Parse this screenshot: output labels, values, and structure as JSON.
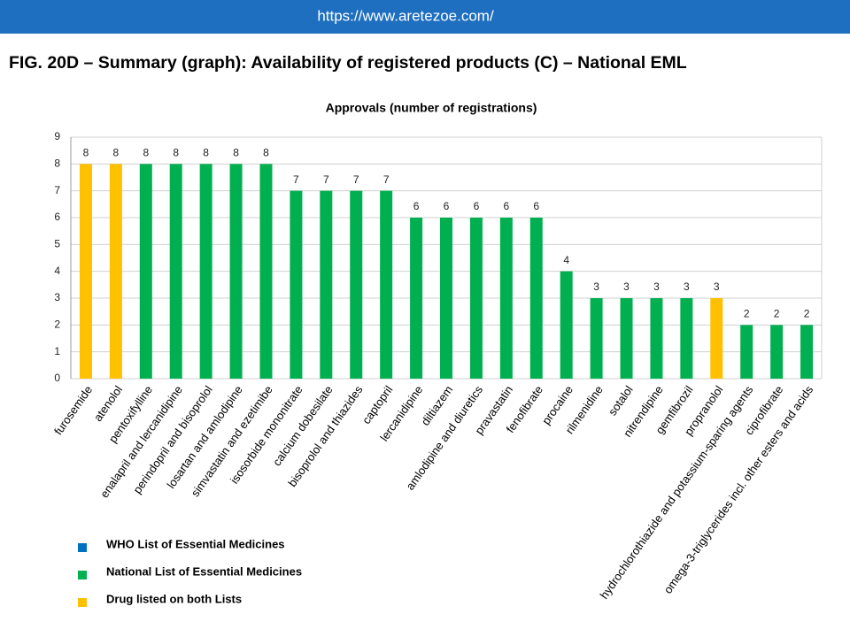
{
  "header": {
    "url": "https://www.aretezoe.com/"
  },
  "title": "FIG. 20D – Summary (graph): Availability of registered products (C) – National EML",
  "chart_data": {
    "type": "bar",
    "title": "Approvals (number of registrations)",
    "categories": [
      "furosemide",
      "atenolol",
      "pentoxifylline",
      "enalapril and lercanidipine",
      "perindopril and bisoprolol",
      "losartan and amlodipine",
      "simvastatin and ezetimibe",
      "isosorbide mononitrate",
      "calcium dobesilate",
      "bisoprolol and thiazides",
      "captopril",
      "lercanidipine",
      "diltiazem",
      "amlodipine and diuretics",
      "pravastatin",
      "fenofibrate",
      "procaine",
      "rilmenidine",
      "sotalol",
      "nitrendipine",
      "gemfibrozil",
      "propranolol",
      "hydrochlorothiazide and potassium-sparing agents",
      "ciprofibrate",
      "omega-3-triglycerides incl. other esters and acids"
    ],
    "values": [
      8,
      8,
      8,
      8,
      8,
      8,
      8,
      7,
      7,
      7,
      7,
      6,
      6,
      6,
      6,
      6,
      4,
      3,
      3,
      3,
      3,
      3,
      2,
      2,
      2
    ],
    "colors": [
      "#ffc000",
      "#ffc000",
      "#00b050",
      "#00b050",
      "#00b050",
      "#00b050",
      "#00b050",
      "#00b050",
      "#00b050",
      "#00b050",
      "#00b050",
      "#00b050",
      "#00b050",
      "#00b050",
      "#00b050",
      "#00b050",
      "#00b050",
      "#00b050",
      "#00b050",
      "#00b050",
      "#00b050",
      "#ffc000",
      "#00b050",
      "#00b050",
      "#00b050"
    ],
    "legend": [
      {
        "name": "WHO List of Essential Medicines",
        "color": "#0070c0"
      },
      {
        "name": "National List of Essential Medicines",
        "color": "#00b050"
      },
      {
        "name": "Drug listed on both Lists",
        "color": "#ffc000"
      }
    ],
    "ylim": [
      0,
      9
    ],
    "yticks": [
      0,
      1,
      2,
      3,
      4,
      5,
      6,
      7,
      8,
      9
    ],
    "grid": true
  }
}
